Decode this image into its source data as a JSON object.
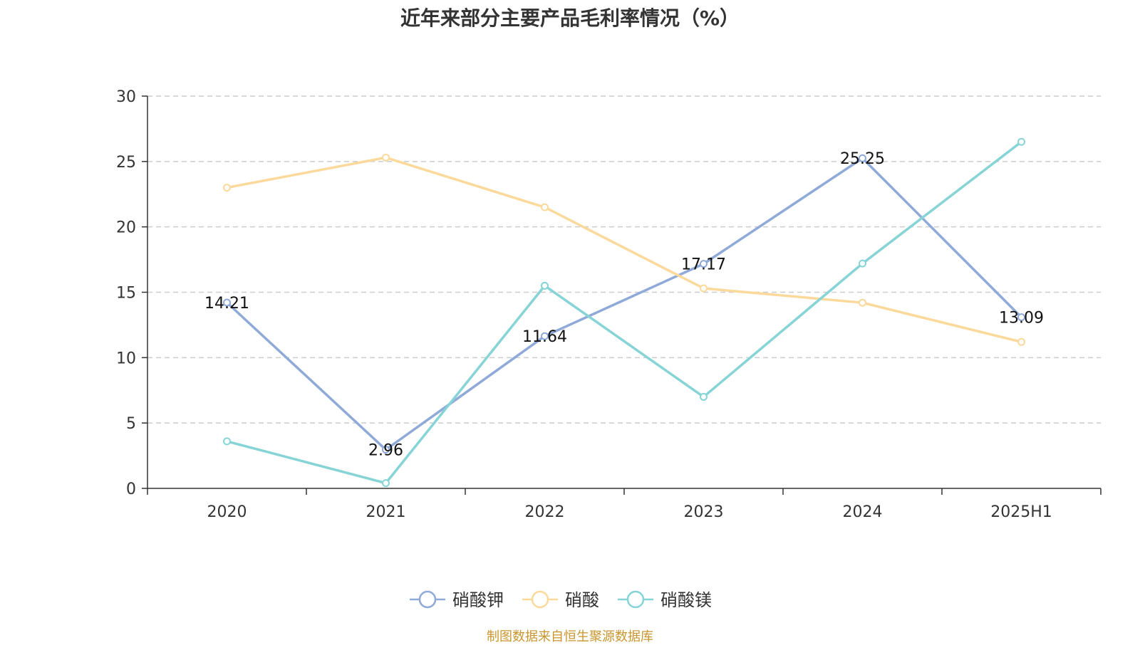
{
  "chart_data": {
    "type": "line",
    "title": "近年来部分主要产品毛利率情况（%）",
    "categories": [
      "2020",
      "2021",
      "2022",
      "2023",
      "2024",
      "2025H1"
    ],
    "ylim": [
      0,
      30
    ],
    "yticks": [
      0,
      5,
      10,
      15,
      20,
      25,
      30
    ],
    "grid": true,
    "legend_position": "bottom",
    "series": [
      {
        "name": "硝酸钾",
        "color": "#8fa9d8",
        "values": [
          14.21,
          2.96,
          11.64,
          17.17,
          25.25,
          13.09
        ],
        "labels": [
          "14.21",
          "2.96",
          "11.64",
          "17.17",
          "25.25",
          "13.09"
        ]
      },
      {
        "name": "硝酸",
        "color": "#fad99b",
        "values": [
          23.0,
          25.3,
          21.5,
          15.3,
          14.2,
          11.2
        ],
        "labels": []
      },
      {
        "name": "硝酸镁",
        "color": "#86d4d6",
        "values": [
          3.6,
          0.4,
          15.5,
          7.0,
          17.2,
          26.5
        ],
        "labels": []
      }
    ]
  },
  "source_note": "制图数据来自恒生聚源数据库"
}
